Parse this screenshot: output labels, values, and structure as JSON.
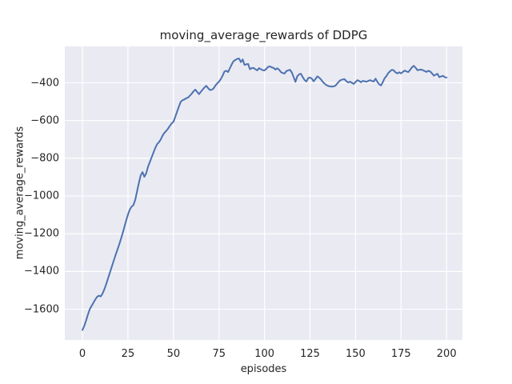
{
  "chart_data": {
    "type": "line",
    "title": "moving_average_rewards of DDPG",
    "xlabel": "episodes",
    "ylabel": "moving_average_rewards",
    "xlim": [
      -9.7,
      208.7
    ],
    "ylim": [
      -1763,
      -207
    ],
    "grid": true,
    "legend": "none",
    "xticks": [
      {
        "v": 0,
        "label": "0"
      },
      {
        "v": 25,
        "label": "25"
      },
      {
        "v": 50,
        "label": "50"
      },
      {
        "v": 75,
        "label": "75"
      },
      {
        "v": 100,
        "label": "100"
      },
      {
        "v": 125,
        "label": "125"
      },
      {
        "v": 150,
        "label": "150"
      },
      {
        "v": 175,
        "label": "175"
      },
      {
        "v": 200,
        "label": "200"
      }
    ],
    "yticks": [
      {
        "v": -400,
        "label": "−400"
      },
      {
        "v": -600,
        "label": "−600"
      },
      {
        "v": -800,
        "label": "−800"
      },
      {
        "v": -1000,
        "label": "−1000"
      },
      {
        "v": -1200,
        "label": "−1200"
      },
      {
        "v": -1400,
        "label": "−1400"
      },
      {
        "v": -1600,
        "label": "−1600"
      }
    ],
    "series": [
      {
        "name": "moving_average_rewards",
        "x_start": 0,
        "x_step": 1,
        "values": [
          -1710,
          -1688,
          -1660,
          -1628,
          -1600,
          -1583,
          -1566,
          -1549,
          -1535,
          -1528,
          -1532,
          -1518,
          -1495,
          -1468,
          -1438,
          -1408,
          -1378,
          -1348,
          -1318,
          -1290,
          -1262,
          -1232,
          -1200,
          -1165,
          -1130,
          -1098,
          -1072,
          -1056,
          -1048,
          -1020,
          -975,
          -930,
          -890,
          -873,
          -898,
          -880,
          -845,
          -820,
          -795,
          -770,
          -745,
          -725,
          -715,
          -700,
          -680,
          -665,
          -655,
          -643,
          -628,
          -615,
          -606,
          -580,
          -552,
          -525,
          -500,
          -492,
          -488,
          -482,
          -478,
          -468,
          -458,
          -445,
          -436,
          -448,
          -460,
          -448,
          -436,
          -425,
          -416,
          -428,
          -438,
          -437,
          -430,
          -415,
          -403,
          -394,
          -380,
          -362,
          -340,
          -336,
          -343,
          -322,
          -302,
          -285,
          -279,
          -273,
          -271,
          -290,
          -276,
          -305,
          -302,
          -300,
          -328,
          -322,
          -321,
          -328,
          -334,
          -322,
          -328,
          -333,
          -334,
          -326,
          -315,
          -313,
          -318,
          -321,
          -330,
          -323,
          -330,
          -343,
          -348,
          -351,
          -338,
          -334,
          -331,
          -345,
          -370,
          -395,
          -365,
          -355,
          -352,
          -370,
          -385,
          -393,
          -375,
          -372,
          -378,
          -392,
          -380,
          -366,
          -372,
          -382,
          -395,
          -404,
          -412,
          -417,
          -419,
          -420,
          -419,
          -415,
          -403,
          -392,
          -385,
          -382,
          -381,
          -392,
          -398,
          -394,
          -400,
          -406,
          -396,
          -386,
          -390,
          -397,
          -390,
          -392,
          -394,
          -390,
          -386,
          -390,
          -393,
          -378,
          -395,
          -408,
          -414,
          -396,
          -375,
          -364,
          -348,
          -338,
          -331,
          -334,
          -345,
          -350,
          -344,
          -350,
          -342,
          -335,
          -340,
          -343,
          -331,
          -318,
          -310,
          -320,
          -333,
          -331,
          -330,
          -333,
          -338,
          -342,
          -336,
          -340,
          -350,
          -362,
          -357,
          -352,
          -370,
          -366,
          -363,
          -370,
          -372
        ]
      }
    ],
    "colors": {
      "line": "#4c72b0",
      "plot_background": "#eaeaf2",
      "grid": "#ffffff",
      "figure_background": "#ffffff",
      "text": "#262626"
    }
  }
}
